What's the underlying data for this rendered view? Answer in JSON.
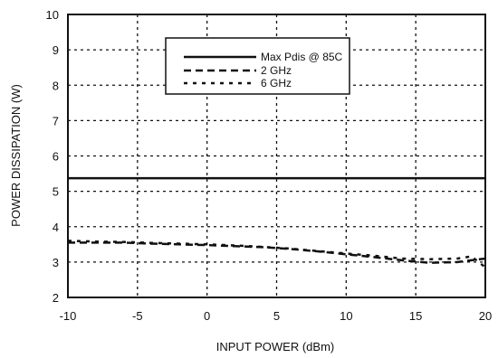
{
  "chart_data": {
    "type": "line",
    "xlabel": "INPUT POWER (dBm)",
    "ylabel": "POWER DISSIPATION (W)",
    "xlim": [
      -10,
      20
    ],
    "ylim": [
      2,
      10
    ],
    "x_ticks": [
      "-10",
      "-5",
      "0",
      "5",
      "10",
      "15",
      "20"
    ],
    "y_ticks": [
      "2",
      "3",
      "4",
      "5",
      "6",
      "7",
      "8",
      "9",
      "10"
    ],
    "grid": "dotted",
    "legend_position": "top-center",
    "series": [
      {
        "name": "Max Pdis @ 85C",
        "style": "solid",
        "x": [
          -10,
          20
        ],
        "y": [
          5.37,
          5.37
        ]
      },
      {
        "name": "2 GHz",
        "style": "dashed",
        "x": [
          -10,
          -8,
          -6,
          -4,
          -2,
          0,
          2,
          4,
          6,
          8,
          10,
          12,
          14,
          16,
          18,
          19,
          20
        ],
        "y": [
          3.55,
          3.55,
          3.55,
          3.52,
          3.5,
          3.48,
          3.45,
          3.42,
          3.37,
          3.3,
          3.22,
          3.14,
          3.05,
          2.98,
          3.0,
          3.05,
          3.1
        ]
      },
      {
        "name": "6 GHz",
        "style": "dotted",
        "x": [
          -10,
          -8,
          -6,
          -4,
          -2,
          0,
          2,
          4,
          6,
          8,
          10,
          12,
          14,
          16,
          18,
          19,
          20
        ],
        "y": [
          3.6,
          3.58,
          3.57,
          3.54,
          3.52,
          3.5,
          3.47,
          3.43,
          3.38,
          3.31,
          3.24,
          3.18,
          3.1,
          3.08,
          3.1,
          3.16,
          2.85
        ]
      }
    ]
  }
}
